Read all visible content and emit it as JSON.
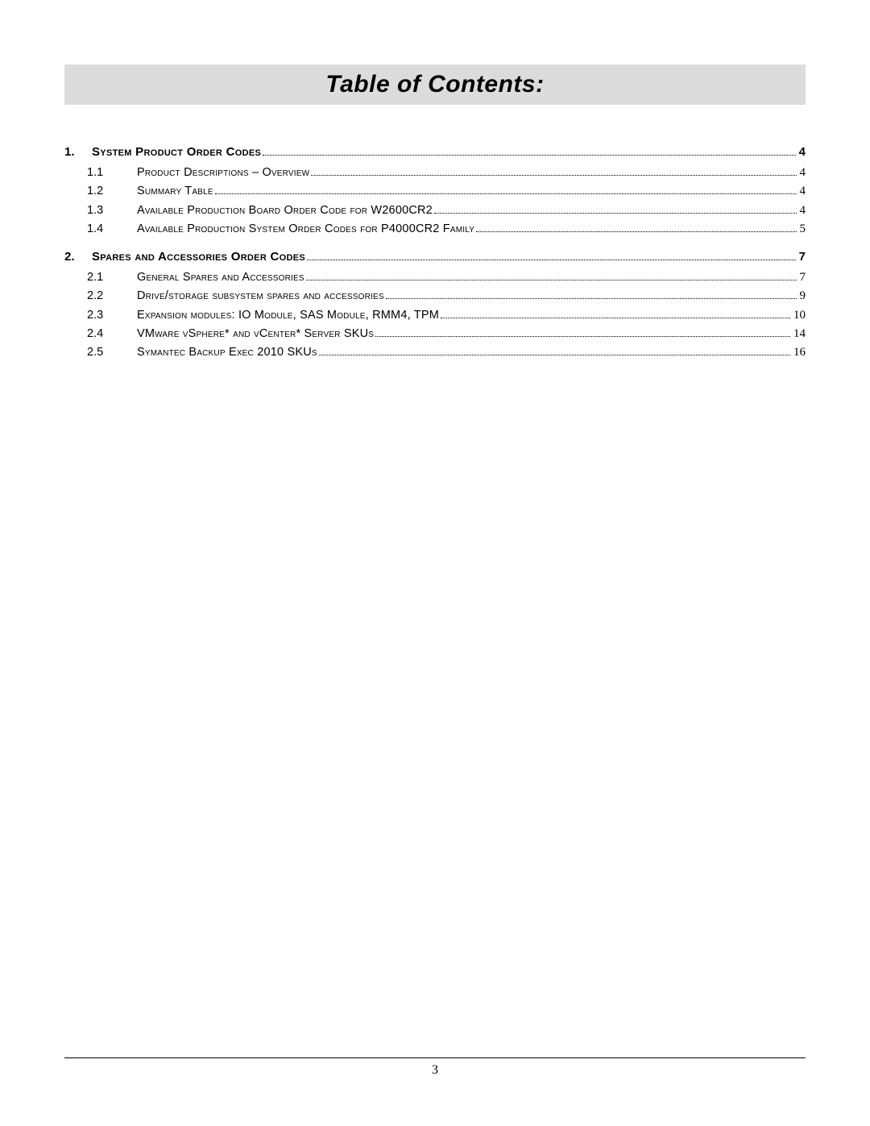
{
  "title": "Table of Contents:",
  "page_number": "3",
  "sections": [
    {
      "num": "1.",
      "label": "System Product Order Codes",
      "page": "4",
      "items": [
        {
          "num": "1.1",
          "label": "Product Descriptions – Overview",
          "page": "4"
        },
        {
          "num": "1.2",
          "label": "Summary Table",
          "page": "4"
        },
        {
          "num": "1.3",
          "label": "Available Production Board Order Code for W2600CR2",
          "page": "4"
        },
        {
          "num": "1.4",
          "label": "Available Production System Order Codes for P4000CR2 Family",
          "page": "5"
        }
      ]
    },
    {
      "num": "2.",
      "label": "Spares and Accessories Order Codes",
      "page": "7",
      "items": [
        {
          "num": "2.1",
          "label": "General Spares and Accessories",
          "page": "7"
        },
        {
          "num": "2.2",
          "label": "Drive/storage subsystem spares and accessories",
          "page": "9"
        },
        {
          "num": "2.3",
          "label": "Expansion modules:  IO Module, SAS Module, RMM4, TPM",
          "page": "10"
        },
        {
          "num": "2.4",
          "label": "VMware vSphere* and vCenter* Server SKUs",
          "page": "14"
        },
        {
          "num": "2.5",
          "label": "Symantec Backup Exec 2010 SKUs",
          "page": "16"
        }
      ]
    }
  ]
}
